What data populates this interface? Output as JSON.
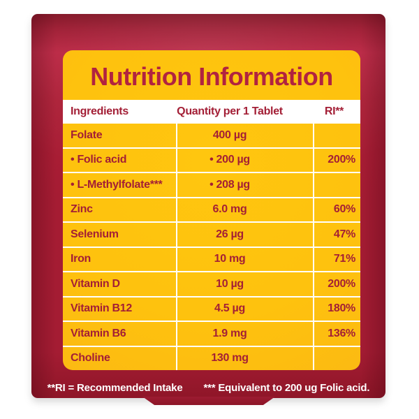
{
  "panel": {
    "title": "Nutrition Information",
    "table": {
      "columns": [
        "Ingredients",
        "Quantity per 1 Tablet",
        "RI**"
      ],
      "rows": [
        {
          "ingredient": "Folate",
          "quantity": "400 µg",
          "ri": ""
        },
        {
          "ingredient": "• Folic acid",
          "quantity": "• 200 µg",
          "ri": "200%"
        },
        {
          "ingredient": "• L-Methylfolate***",
          "quantity": "• 208 µg",
          "ri": ""
        },
        {
          "ingredient": "Zinc",
          "quantity": "6.0 mg",
          "ri": "60%"
        },
        {
          "ingredient": "Selenium",
          "quantity": "26 µg",
          "ri": "47%"
        },
        {
          "ingredient": "Iron",
          "quantity": "10 mg",
          "ri": "71%"
        },
        {
          "ingredient": "Vitamin D",
          "quantity": "10 µg",
          "ri": "200%"
        },
        {
          "ingredient": "Vitamin B12",
          "quantity": "4.5 µg",
          "ri": "180%"
        },
        {
          "ingredient": "Vitamin B6",
          "quantity": "1.9 mg",
          "ri": "136%"
        },
        {
          "ingredient": "Choline",
          "quantity": "130 mg",
          "ri": ""
        }
      ]
    }
  },
  "footnotes": {
    "ri_definition": "**RI = Recommended Intake",
    "equivalent": "*** Equivalent to 200 ug Folic acid."
  },
  "colors": {
    "package_red": "#a51c33",
    "package_red_dark": "#8f1628",
    "panel_yellow": "#fec20e",
    "text_red": "#a31f36",
    "title_red": "#b12340",
    "divider_white": "#ffffff",
    "footnote_white": "#ffffff"
  }
}
